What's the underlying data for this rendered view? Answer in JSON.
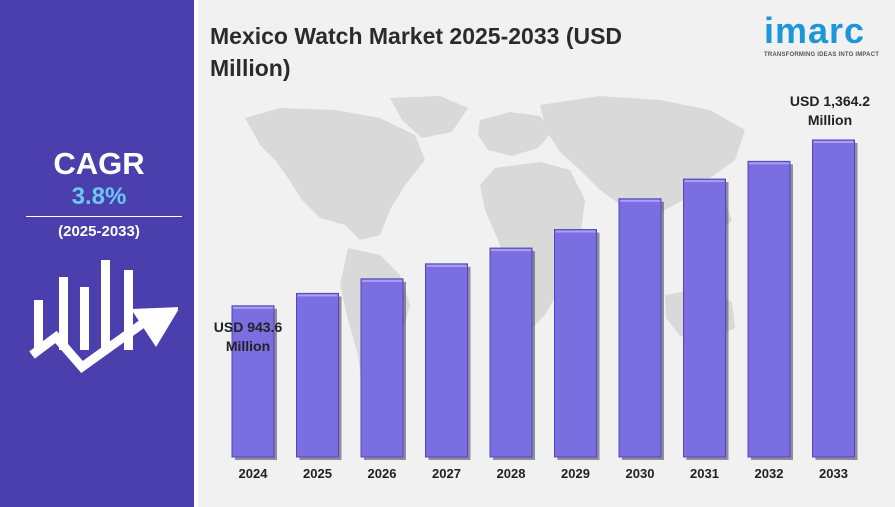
{
  "header": {
    "title": "Mexico Watch Market 2025-2033 (USD Million)"
  },
  "logo": {
    "text": "imarc",
    "tagline": "TRANSFORMING IDEAS INTO IMPACT",
    "color": "#1c96d6"
  },
  "sidebar": {
    "cagr_label": "CAGR",
    "cagr_value": "3.8%",
    "period": "(2025-2033)",
    "icon": "growth-chart-arrow-icon",
    "background": "#4b3fae"
  },
  "annotations": {
    "first_value": "USD 943.6",
    "first_unit": "Million",
    "last_value": "USD 1,364.2",
    "last_unit": "Million"
  },
  "chart_data": {
    "type": "bar",
    "title": "Mexico Watch Market 2025-2033 (USD Million)",
    "categories": [
      "2024",
      "2025",
      "2026",
      "2027",
      "2028",
      "2029",
      "2030",
      "2031",
      "2032",
      "2033"
    ],
    "values": [
      943.6,
      975,
      1012,
      1050,
      1090,
      1137,
      1215,
      1265,
      1310,
      1364.2
    ],
    "bar_color": "#7b6ee0",
    "grid": false,
    "legend": "none",
    "background_map": "world-map"
  }
}
